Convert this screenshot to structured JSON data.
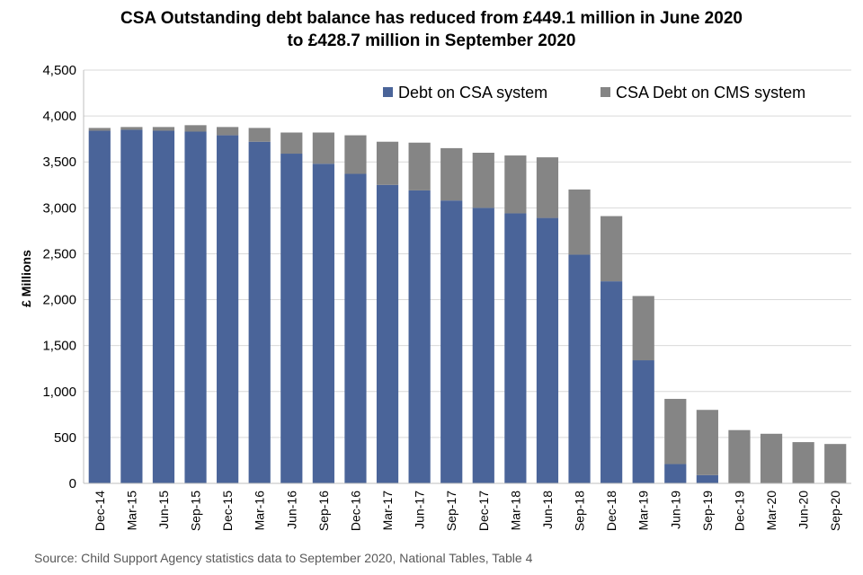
{
  "title_line1": "CSA Outstanding debt balance has reduced from £449.1 million in June 2020",
  "title_line2": "to £428.7 million in September 2020",
  "source": "Source: Child Support Agency statistics data to September 2020, National Tables, Table 4",
  "chart_data": {
    "type": "bar",
    "stacked": true,
    "title": "CSA Outstanding debt balance has reduced from £449.1 million in June 2020 to £428.7 million in September 2020",
    "xlabel": "",
    "ylabel": "£ Millions",
    "ylim": [
      0,
      4500
    ],
    "yticks": [
      0,
      500,
      1000,
      1500,
      2000,
      2500,
      3000,
      3500,
      4000,
      4500
    ],
    "ytick_labels": [
      "0",
      "500",
      "1,000",
      "1,500",
      "2,000",
      "2,500",
      "3,000",
      "3,500",
      "4,000",
      "4,500"
    ],
    "grid": true,
    "legend_position": "top-right",
    "categories": [
      "Dec-14",
      "Mar-15",
      "Jun-15",
      "Sep-15",
      "Dec-15",
      "Mar-16",
      "Jun-16",
      "Sep-16",
      "Dec-16",
      "Mar-17",
      "Jun-17",
      "Sep-17",
      "Dec-17",
      "Mar-18",
      "Jun-18",
      "Sep-18",
      "Dec-18",
      "Mar-19",
      "Jun-19",
      "Sep-19",
      "Dec-19",
      "Mar-20",
      "Jun-20",
      "Sep-20"
    ],
    "series": [
      {
        "name": "Debt on CSA system",
        "color": "#4a6499",
        "values": [
          3840,
          3850,
          3840,
          3830,
          3790,
          3720,
          3590,
          3480,
          3370,
          3250,
          3190,
          3080,
          3000,
          2940,
          2890,
          2490,
          2200,
          1340,
          210,
          90,
          0,
          0,
          0,
          0
        ]
      },
      {
        "name": "CSA Debt on CMS system",
        "color": "#858585",
        "values": [
          30,
          30,
          40,
          70,
          90,
          150,
          230,
          340,
          420,
          470,
          520,
          570,
          600,
          630,
          660,
          710,
          710,
          700,
          710,
          710,
          580,
          540,
          449.1,
          428.7
        ]
      }
    ]
  }
}
